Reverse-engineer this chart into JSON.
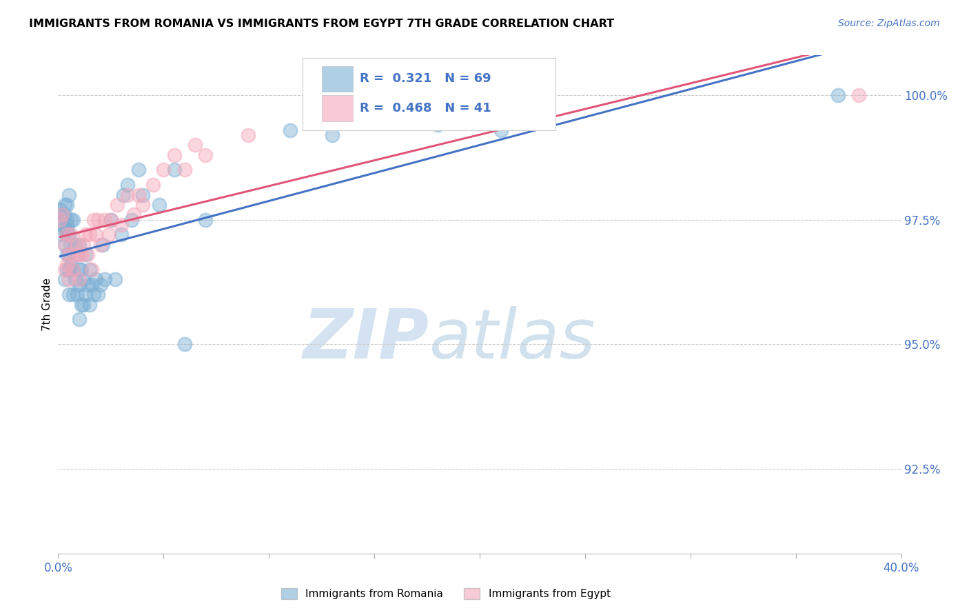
{
  "title": "IMMIGRANTS FROM ROMANIA VS IMMIGRANTS FROM EGYPT 7TH GRADE CORRELATION CHART",
  "source": "Source: ZipAtlas.com",
  "ylabel": "7th Grade",
  "ylabel_right_ticks": [
    "100.0%",
    "97.5%",
    "95.0%",
    "92.5%"
  ],
  "ylabel_right_vals": [
    1.0,
    0.975,
    0.95,
    0.925
  ],
  "xlim": [
    0.0,
    0.4
  ],
  "ylim": [
    0.908,
    1.008
  ],
  "romania_color": "#7bafd4",
  "egypt_color": "#f4a7b9",
  "romania_line_color": "#4472c4",
  "egypt_line_color": "#e05578",
  "romania_R": 0.321,
  "romania_N": 69,
  "egypt_R": 0.468,
  "egypt_N": 41,
  "legend_label_romania": "Immigrants from Romania",
  "legend_label_egypt": "Immigrants from Egypt",
  "romania_x": [
    0.001,
    0.001,
    0.002,
    0.002,
    0.002,
    0.003,
    0.003,
    0.003,
    0.003,
    0.003,
    0.004,
    0.004,
    0.004,
    0.004,
    0.004,
    0.004,
    0.004,
    0.005,
    0.005,
    0.005,
    0.005,
    0.005,
    0.006,
    0.006,
    0.006,
    0.007,
    0.007,
    0.007,
    0.008,
    0.008,
    0.009,
    0.009,
    0.01,
    0.01,
    0.01,
    0.01,
    0.011,
    0.011,
    0.012,
    0.012,
    0.013,
    0.013,
    0.014,
    0.015,
    0.015,
    0.016,
    0.017,
    0.018,
    0.019,
    0.02,
    0.021,
    0.022,
    0.025,
    0.027,
    0.03,
    0.031,
    0.033,
    0.035,
    0.038,
    0.04,
    0.048,
    0.055,
    0.06,
    0.07,
    0.11,
    0.13,
    0.18,
    0.21,
    0.37
  ],
  "romania_y": [
    0.975,
    0.977,
    0.972,
    0.974,
    0.976,
    0.963,
    0.97,
    0.973,
    0.976,
    0.978,
    0.965,
    0.968,
    0.972,
    0.973,
    0.974,
    0.975,
    0.978,
    0.96,
    0.965,
    0.968,
    0.972,
    0.98,
    0.966,
    0.97,
    0.975,
    0.96,
    0.965,
    0.975,
    0.963,
    0.97,
    0.96,
    0.968,
    0.955,
    0.962,
    0.965,
    0.97,
    0.958,
    0.965,
    0.958,
    0.963,
    0.96,
    0.968,
    0.962,
    0.958,
    0.965,
    0.962,
    0.96,
    0.963,
    0.96,
    0.962,
    0.97,
    0.963,
    0.975,
    0.963,
    0.972,
    0.98,
    0.982,
    0.975,
    0.985,
    0.98,
    0.978,
    0.985,
    0.95,
    0.975,
    0.993,
    0.992,
    0.994,
    0.993,
    1.0
  ],
  "egypt_x": [
    0.001,
    0.002,
    0.003,
    0.003,
    0.004,
    0.004,
    0.005,
    0.005,
    0.006,
    0.007,
    0.008,
    0.009,
    0.01,
    0.01,
    0.011,
    0.012,
    0.013,
    0.014,
    0.015,
    0.016,
    0.017,
    0.018,
    0.019,
    0.02,
    0.022,
    0.024,
    0.025,
    0.028,
    0.03,
    0.033,
    0.036,
    0.038,
    0.04,
    0.045,
    0.05,
    0.055,
    0.06,
    0.065,
    0.07,
    0.09,
    0.38
  ],
  "egypt_y": [
    0.975,
    0.976,
    0.965,
    0.97,
    0.966,
    0.972,
    0.963,
    0.968,
    0.972,
    0.965,
    0.968,
    0.97,
    0.963,
    0.968,
    0.968,
    0.97,
    0.972,
    0.968,
    0.972,
    0.965,
    0.975,
    0.972,
    0.975,
    0.97,
    0.975,
    0.972,
    0.975,
    0.978,
    0.974,
    0.98,
    0.976,
    0.98,
    0.978,
    0.982,
    0.985,
    0.988,
    0.985,
    0.99,
    0.988,
    0.992,
    1.0
  ]
}
